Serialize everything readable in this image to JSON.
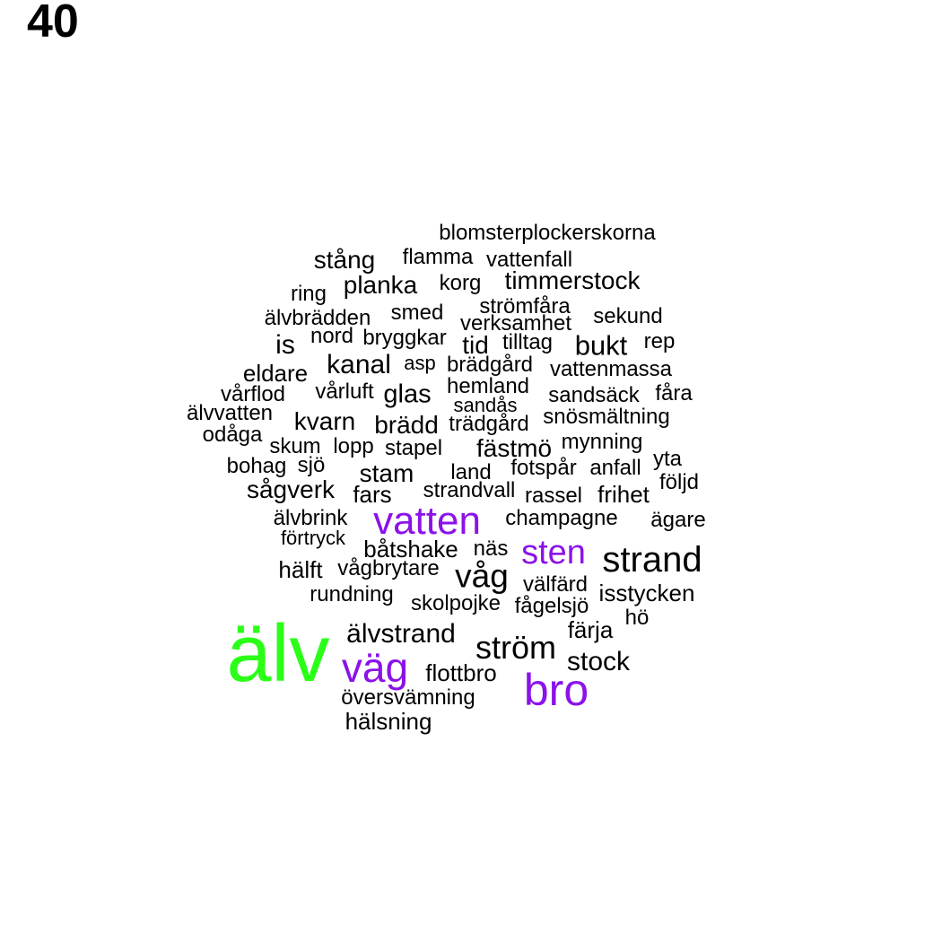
{
  "page_number": "40",
  "colors": {
    "default": "#000000",
    "purple": "#8b12e8",
    "green": "#2bff17"
  },
  "words": [
    {
      "text": "blomsterplockerskorna",
      "color": "default"
    },
    {
      "text": "stång",
      "color": "default"
    },
    {
      "text": "flamma",
      "color": "default"
    },
    {
      "text": "vattenfall",
      "color": "default"
    },
    {
      "text": "planka",
      "color": "default"
    },
    {
      "text": "korg",
      "color": "default"
    },
    {
      "text": "timmerstock",
      "color": "default"
    },
    {
      "text": "ring",
      "color": "default"
    },
    {
      "text": "strömfåra",
      "color": "default"
    },
    {
      "text": "älvbrädden",
      "color": "default"
    },
    {
      "text": "smed",
      "color": "default"
    },
    {
      "text": "verksamhet",
      "color": "default"
    },
    {
      "text": "sekund",
      "color": "default"
    },
    {
      "text": "nord",
      "color": "default"
    },
    {
      "text": "bryggkar",
      "color": "default"
    },
    {
      "text": "tid",
      "color": "default"
    },
    {
      "text": "tilltag",
      "color": "default"
    },
    {
      "text": "bukt",
      "color": "default"
    },
    {
      "text": "rep",
      "color": "default"
    },
    {
      "text": "is",
      "color": "default"
    },
    {
      "text": "kanal",
      "color": "default"
    },
    {
      "text": "asp",
      "color": "default"
    },
    {
      "text": "brädgård",
      "color": "default"
    },
    {
      "text": "vattenmassa",
      "color": "default"
    },
    {
      "text": "eldare",
      "color": "default"
    },
    {
      "text": "vårflod",
      "color": "default"
    },
    {
      "text": "vårluft",
      "color": "default"
    },
    {
      "text": "glas",
      "color": "default"
    },
    {
      "text": "hemland",
      "color": "default"
    },
    {
      "text": "sandsäck",
      "color": "default"
    },
    {
      "text": "fåra",
      "color": "default"
    },
    {
      "text": "sandås",
      "color": "default"
    },
    {
      "text": "älvvatten",
      "color": "default"
    },
    {
      "text": "kvarn",
      "color": "default"
    },
    {
      "text": "brädd",
      "color": "default"
    },
    {
      "text": "trädgård",
      "color": "default"
    },
    {
      "text": "snösmältning",
      "color": "default"
    },
    {
      "text": "odåga",
      "color": "default"
    },
    {
      "text": "skum",
      "color": "default"
    },
    {
      "text": "lopp",
      "color": "default"
    },
    {
      "text": "stapel",
      "color": "default"
    },
    {
      "text": "fästmö",
      "color": "default"
    },
    {
      "text": "mynning",
      "color": "default"
    },
    {
      "text": "bohag",
      "color": "default"
    },
    {
      "text": "sjö",
      "color": "default"
    },
    {
      "text": "stam",
      "color": "default"
    },
    {
      "text": "land",
      "color": "default"
    },
    {
      "text": "fotspår",
      "color": "default"
    },
    {
      "text": "anfall",
      "color": "default"
    },
    {
      "text": "yta",
      "color": "default"
    },
    {
      "text": "följd",
      "color": "default"
    },
    {
      "text": "sågverk",
      "color": "default"
    },
    {
      "text": "fars",
      "color": "default"
    },
    {
      "text": "strandvall",
      "color": "default"
    },
    {
      "text": "rassel",
      "color": "default"
    },
    {
      "text": "frihet",
      "color": "default"
    },
    {
      "text": "älvbrink",
      "color": "default"
    },
    {
      "text": "vatten",
      "color": "purple"
    },
    {
      "text": "champagne",
      "color": "default"
    },
    {
      "text": "ägare",
      "color": "default"
    },
    {
      "text": "förtryck",
      "color": "default"
    },
    {
      "text": "båtshake",
      "color": "default"
    },
    {
      "text": "näs",
      "color": "default"
    },
    {
      "text": "sten",
      "color": "purple"
    },
    {
      "text": "strand",
      "color": "default"
    },
    {
      "text": "hälft",
      "color": "default"
    },
    {
      "text": "vågbrytare",
      "color": "default"
    },
    {
      "text": "våg",
      "color": "default"
    },
    {
      "text": "välfärd",
      "color": "default"
    },
    {
      "text": "isstycken",
      "color": "default"
    },
    {
      "text": "rundning",
      "color": "default"
    },
    {
      "text": "skolpojke",
      "color": "default"
    },
    {
      "text": "fågelsjö",
      "color": "default"
    },
    {
      "text": "hö",
      "color": "default"
    },
    {
      "text": "färja",
      "color": "default"
    },
    {
      "text": "älv",
      "color": "green"
    },
    {
      "text": "älvstrand",
      "color": "default"
    },
    {
      "text": "ström",
      "color": "default"
    },
    {
      "text": "väg",
      "color": "purple"
    },
    {
      "text": "stock",
      "color": "default"
    },
    {
      "text": "flottbro",
      "color": "default"
    },
    {
      "text": "bro",
      "color": "purple"
    },
    {
      "text": "översvämning",
      "color": "default"
    },
    {
      "text": "hälsning",
      "color": "default"
    }
  ]
}
